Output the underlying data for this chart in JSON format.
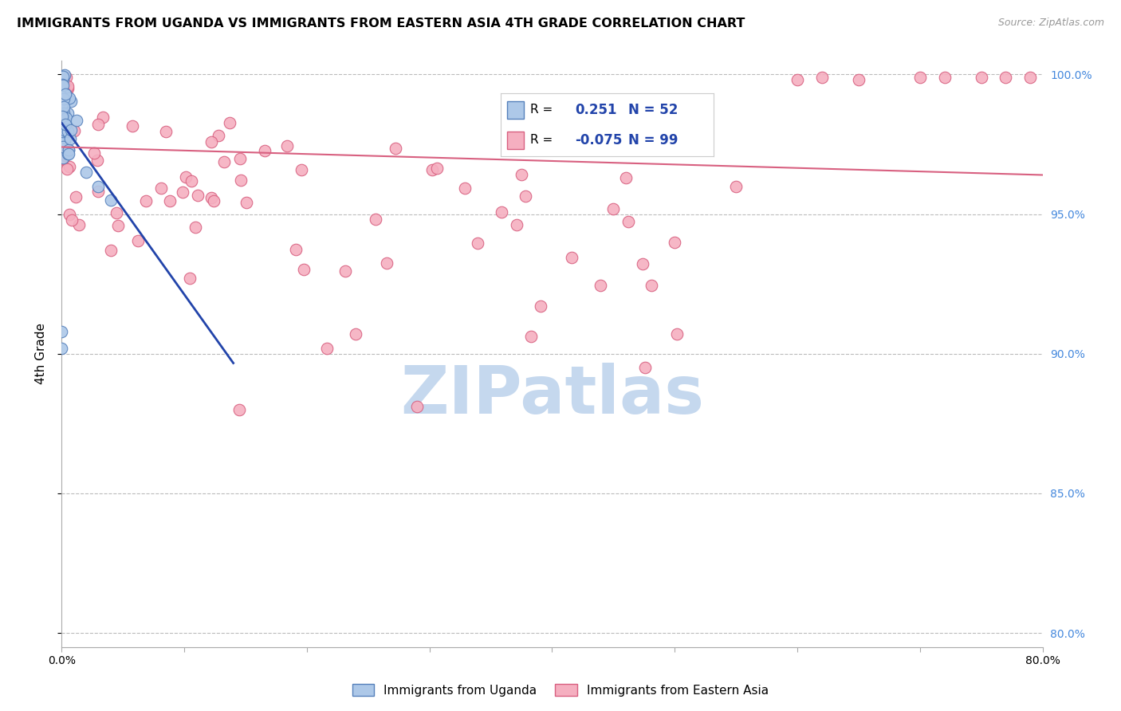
{
  "title": "IMMIGRANTS FROM UGANDA VS IMMIGRANTS FROM EASTERN ASIA 4TH GRADE CORRELATION CHART",
  "source": "Source: ZipAtlas.com",
  "ylabel": "4th Grade",
  "xlim": [
    0.0,
    0.8
  ],
  "ylim": [
    0.795,
    1.005
  ],
  "xtick_positions": [
    0.0,
    0.1,
    0.2,
    0.3,
    0.4,
    0.5,
    0.6,
    0.7,
    0.8
  ],
  "xtick_labels": [
    "0.0%",
    "",
    "",
    "",
    "",
    "",
    "",
    "",
    "80.0%"
  ],
  "ytick_positions": [
    0.8,
    0.85,
    0.9,
    0.95,
    1.0
  ],
  "ytick_labels": [
    "80.0%",
    "85.0%",
    "90.0%",
    "95.0%",
    "100.0%"
  ],
  "legend_r_uganda": "0.251",
  "legend_n_uganda": "52",
  "legend_r_eastern": "-0.075",
  "legend_n_eastern": "99",
  "uganda_color": "#adc8e8",
  "eastern_color": "#f5afc0",
  "uganda_edge": "#5580bb",
  "eastern_edge": "#d86080",
  "trend_uganda_color": "#2244aa",
  "trend_eastern_color": "#d86080",
  "watermark_text": "ZIPatlas",
  "watermark_color": "#c5d8ee",
  "grid_color": "#bbbbbb",
  "background_color": "#ffffff",
  "right_tick_color": "#4488dd",
  "legend_text_color": "#2244aa"
}
